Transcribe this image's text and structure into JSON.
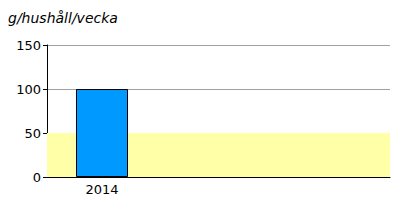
{
  "chart_data": {
    "type": "bar",
    "y_label": "g/hushåll/vecka",
    "categories": [
      "2014"
    ],
    "values": [
      100
    ],
    "color": "#0099ff",
    "ylim": [
      0,
      150
    ],
    "yticks": [
      0,
      50,
      100,
      150
    ],
    "grid": true,
    "reference_band": [
      0,
      50
    ]
  }
}
